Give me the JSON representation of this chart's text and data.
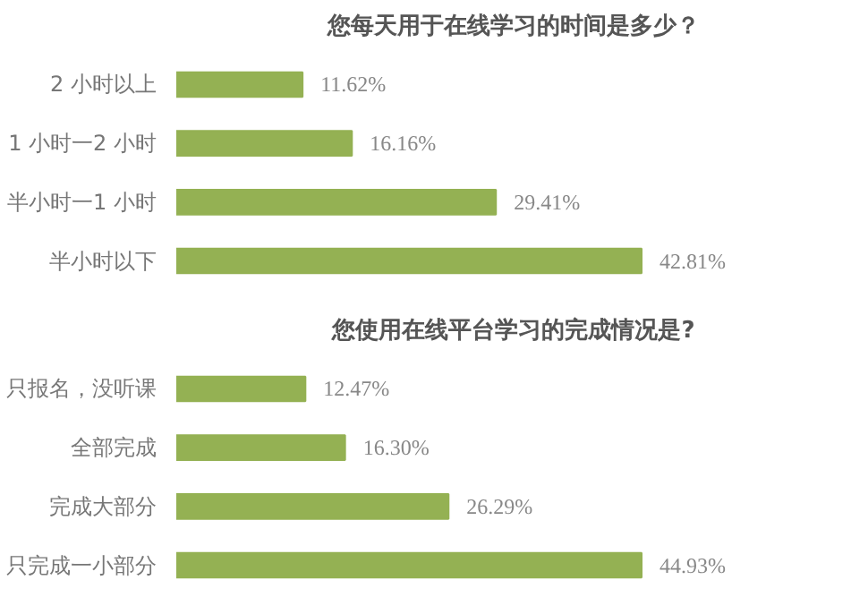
{
  "chart_data": [
    {
      "type": "bar",
      "orientation": "horizontal",
      "title": "您每天用于在线学习的时间是多少？",
      "categories": [
        "2 小时以上",
        "1 小时一2 小时",
        "半小时一1 小时",
        "半小时以下"
      ],
      "values": [
        11.62,
        16.16,
        29.41,
        42.81
      ],
      "value_labels": [
        "11.62%",
        "16.16%",
        "29.41%",
        "42.81%"
      ],
      "color": "#94b153",
      "tick_labels": "y",
      "grid": false
    },
    {
      "type": "bar",
      "orientation": "horizontal",
      "title": "您使用在线平台学习的完成情况是?",
      "categories": [
        "只报名，没听课",
        "全部完成",
        "完成大部分",
        "只完成一小部分"
      ],
      "values": [
        12.47,
        16.3,
        26.29,
        44.93
      ],
      "value_labels": [
        "12.47%",
        "16.30%",
        "26.29%",
        "44.93%"
      ],
      "color": "#94b153",
      "tick_labels": "y",
      "grid": false
    }
  ]
}
